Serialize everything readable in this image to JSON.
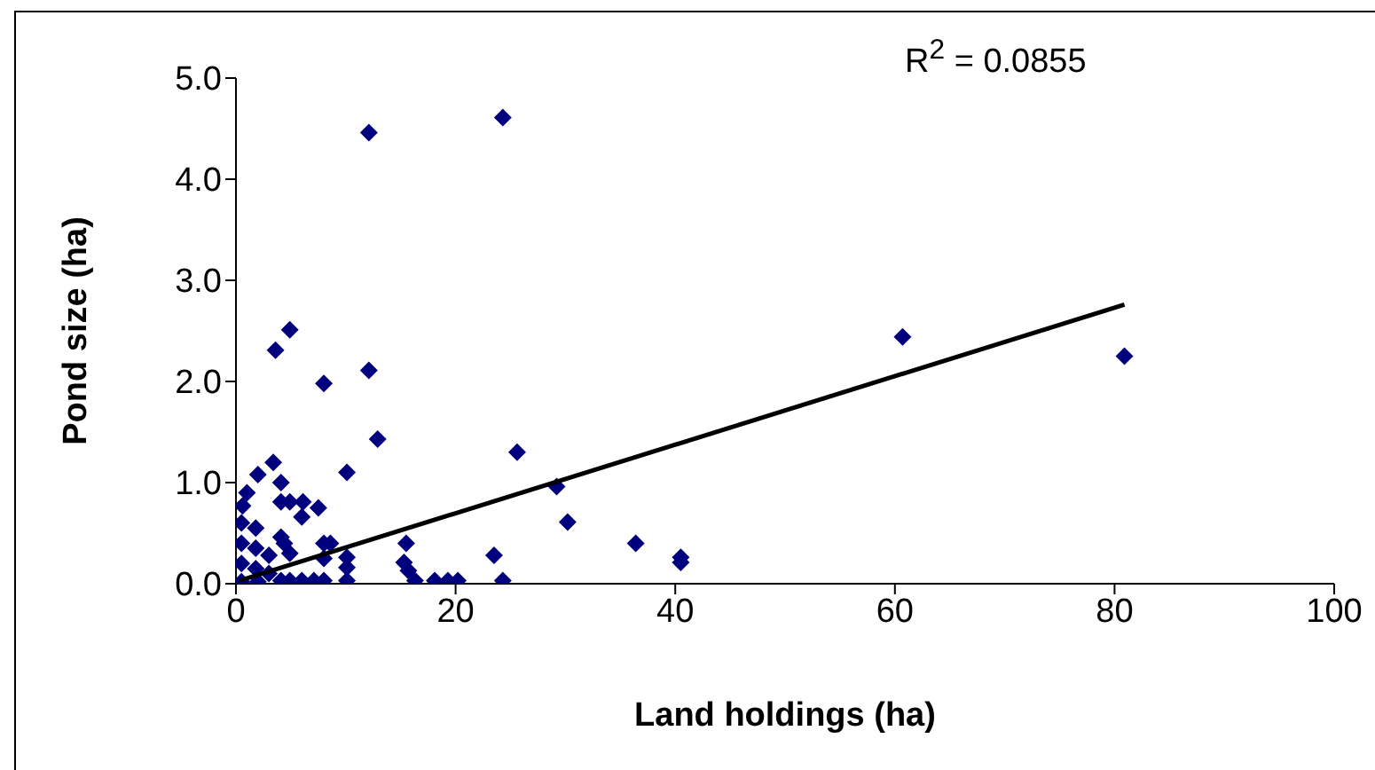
{
  "chart_data": {
    "type": "scatter",
    "xlabel": "Land holdings (ha)",
    "ylabel": "Pond size (ha)",
    "annotations": [
      "R$^{2}$ = 0.0855"
    ],
    "xlim": [
      0,
      100
    ],
    "xticks": [
      0,
      20,
      40,
      60,
      80,
      100
    ],
    "ylim": [
      0,
      5
    ],
    "yticks": [
      {
        "value": 0,
        "label": "0.0"
      },
      {
        "value": 1,
        "label": "1.0"
      },
      {
        "value": 2,
        "label": "2.0"
      },
      {
        "value": 3,
        "label": "3.0"
      },
      {
        "value": 4,
        "label": "4.0"
      },
      {
        "value": 5,
        "label": "5.0"
      }
    ],
    "grid": false,
    "legend": false,
    "series": [
      {
        "color": "#00007f",
        "marker": "diamond",
        "x": [
          12.1,
          24.3,
          3.6,
          4.9,
          8.0,
          12.1,
          12.9,
          10.1,
          25.6,
          29.2,
          30.2,
          36.4,
          40.5,
          40.5,
          23.5,
          24.3,
          60.7,
          80.9,
          3.4,
          2.0,
          1.0,
          0.6,
          4.1,
          4.1,
          4.9,
          6.1,
          6.0,
          7.5,
          4.1,
          4.4,
          4.9,
          8.0,
          8.6,
          8.0,
          10.1,
          10.1,
          10.1,
          15.5,
          15.3,
          15.7,
          16.3,
          18.1,
          19.3,
          20.2,
          4.1,
          4.9,
          6.0,
          7.1,
          8.0,
          0.5,
          0.5,
          0.5,
          0.5,
          1.8,
          1.8,
          1.8,
          3.0,
          3.0,
          2.0
        ],
        "values": [
          4.46,
          4.61,
          2.31,
          2.51,
          1.98,
          2.11,
          1.43,
          1.1,
          1.3,
          0.96,
          0.61,
          0.4,
          0.26,
          0.21,
          0.28,
          0.03,
          2.44,
          2.25,
          1.2,
          1.08,
          0.9,
          0.77,
          1.0,
          0.81,
          0.81,
          0.81,
          0.66,
          0.75,
          0.46,
          0.4,
          0.3,
          0.4,
          0.4,
          0.25,
          0.26,
          0.16,
          0.03,
          0.4,
          0.21,
          0.13,
          0.03,
          0.03,
          0.03,
          0.03,
          0.03,
          0.03,
          0.03,
          0.03,
          0.03,
          0.6,
          0.4,
          0.2,
          0.02,
          0.55,
          0.35,
          0.15,
          0.28,
          0.1,
          0.02
        ]
      },
      {
        "type": "line",
        "color": "#000000",
        "marker": "none",
        "x": [
          0.3,
          80.9
        ],
        "values": [
          0.03,
          2.76
        ]
      }
    ]
  }
}
